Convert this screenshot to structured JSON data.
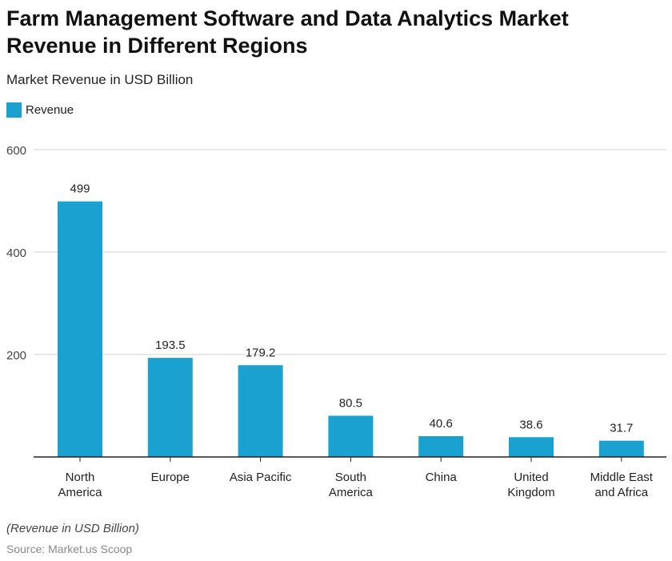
{
  "chart_data": {
    "type": "bar",
    "title": "Farm Management Software and Data Analytics Market Revenue in Different Regions",
    "subtitle": "Market Revenue in USD Billion",
    "categories": [
      [
        "North",
        "America"
      ],
      [
        "Europe"
      ],
      [
        "Asia Pacific"
      ],
      [
        "South",
        "America"
      ],
      [
        "China"
      ],
      [
        "United",
        "Kingdom"
      ],
      [
        "Middle East",
        "and Africa"
      ]
    ],
    "series": [
      {
        "name": "Revenue",
        "values": [
          499,
          193.5,
          179.2,
          80.5,
          40.6,
          38.6,
          31.7
        ],
        "color": "#1ba1cf"
      }
    ],
    "data_labels": [
      "499",
      "193.5",
      "179.2",
      "80.5",
      "40.6",
      "38.6",
      "31.7"
    ],
    "yticks": [
      200,
      400,
      600
    ],
    "ylim": [
      0,
      600
    ],
    "grid": true,
    "legend": "top-left",
    "xlabel": "",
    "ylabel": ""
  },
  "footer": {
    "note": "(Revenue in USD Billion)",
    "source": "Source: Market.us Scoop"
  }
}
